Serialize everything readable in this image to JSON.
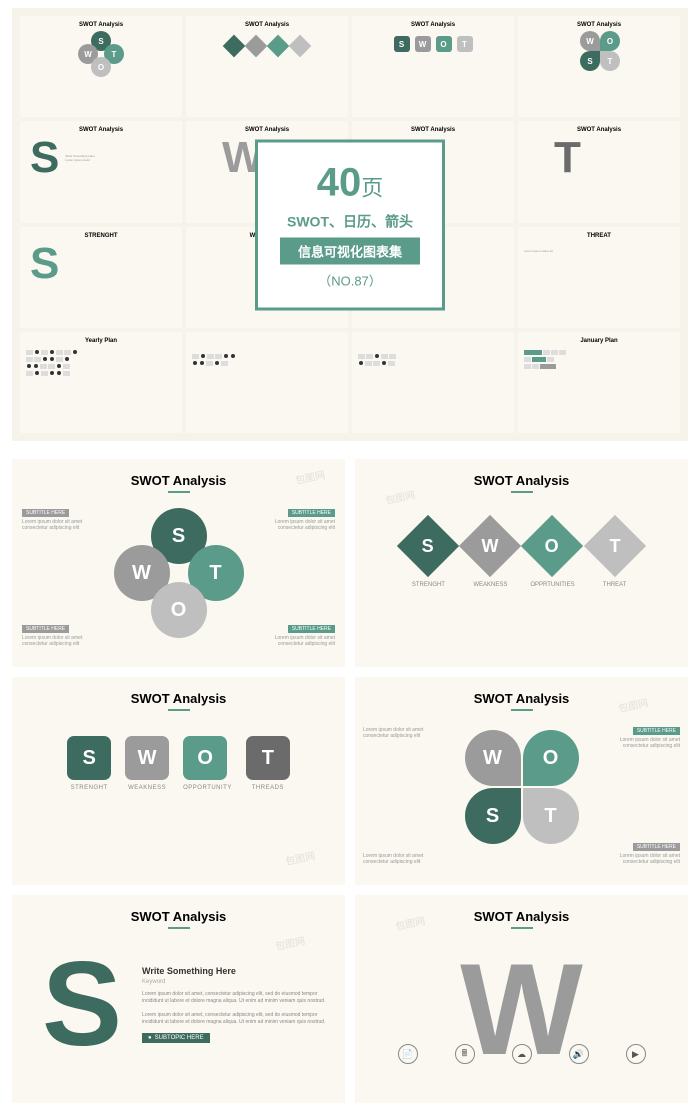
{
  "colors": {
    "teal": "#5a9b8a",
    "darkteal": "#3d6b5f",
    "gray": "#9b9b9b",
    "lightgray": "#bfbfbf",
    "darkgray": "#6b6b6b",
    "cream": "#faf8f0",
    "badge_border": "#5a9b8a"
  },
  "badge": {
    "number": "40",
    "page_char": "页",
    "line1": "SWOT、日历、箭头",
    "bar": "信息可视化图表集",
    "sub": "（NO.87）"
  },
  "slide_title": "SWOT Analysis",
  "swot": {
    "letters": [
      "S",
      "W",
      "O",
      "T"
    ],
    "labels_diamond": [
      "STRENGHT",
      "WEAKNESS",
      "OPPRTUNITIES",
      "THREAT"
    ],
    "labels_square": [
      "STRENGHT",
      "WEAKNESS",
      "OPPORTUNITY",
      "THREADS"
    ]
  },
  "callout": {
    "tag": "SUBTITLE HERE",
    "lorem": "Lorem ipsum dolor sit amet consectetur adipiscing elit"
  },
  "bigslide": {
    "heading": "Write Something Here",
    "sub": "Keyword",
    "lorem": "Lorem ipsum dolor sit amet, consectetur adipiscing elit, sed do eiusmod tempor incididunt ut labore et dolore magna aliqua. Ut enim ad minim veniam quis nostrud.",
    "subtopic": "SUBTOPIC HERE"
  },
  "thumbs": {
    "titles": [
      "SWOT Analysis",
      "SWOT Analysis",
      "SWOT Analysis",
      "SWOT Analysis",
      "SWOT Analysis",
      "SWOT Analysis",
      "SWOT Analysis",
      "SWOT Analysis",
      "STRENGHT",
      "WEAKNESS",
      "",
      "THREAT",
      "Yearly Plan",
      "",
      "",
      "January Plan"
    ]
  },
  "watermark": "包图网"
}
